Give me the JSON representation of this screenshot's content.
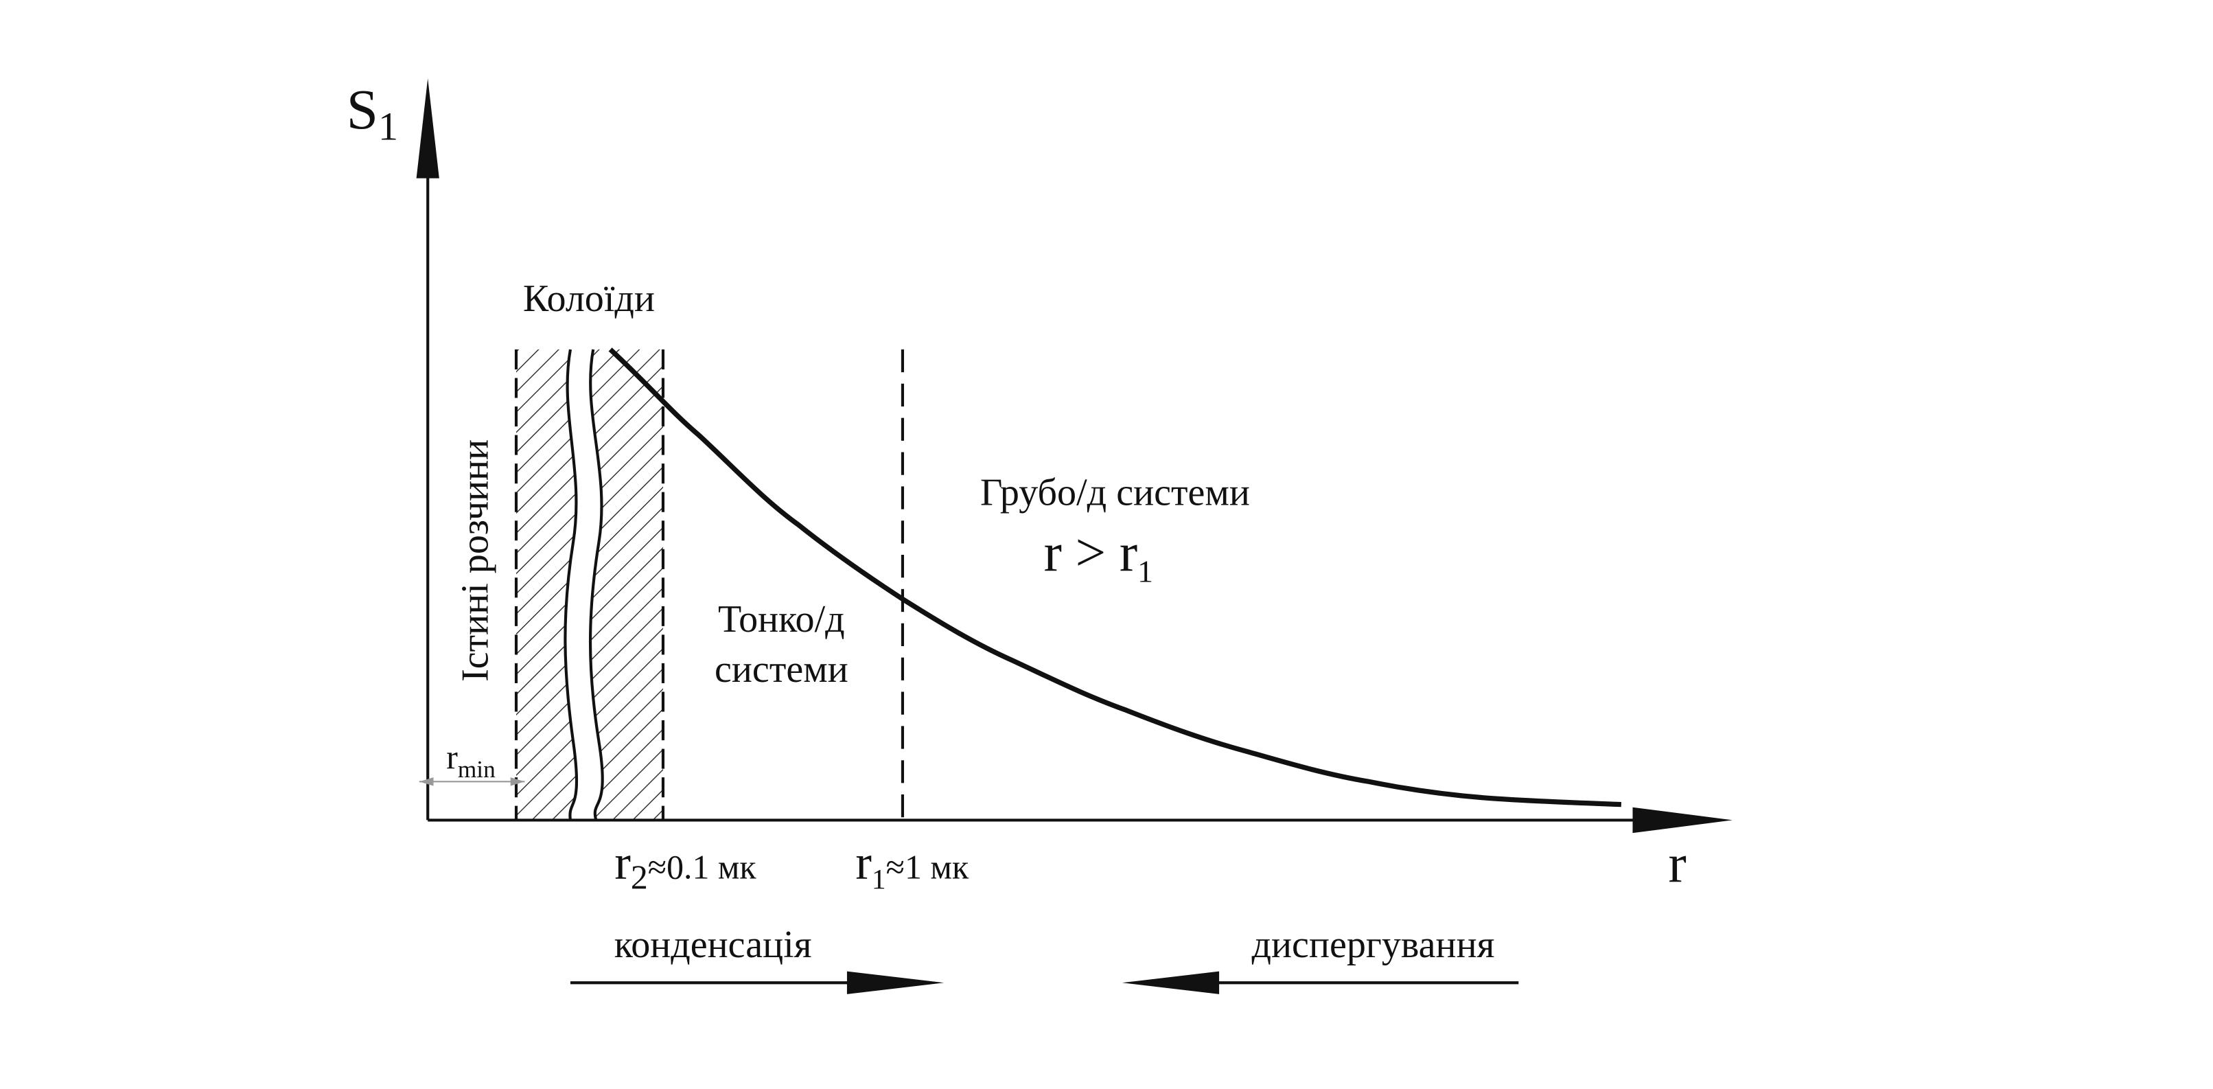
{
  "axes": {
    "y_label": {
      "base": "S",
      "sub": "1"
    },
    "x_label": "r"
  },
  "regions": {
    "colloids": "Колоїди",
    "true_solutions": "Істині розчини",
    "fine": [
      "Тонко/д",
      "системи"
    ],
    "coarse": "Грубо/д системи",
    "coarse_condition": {
      "base": "r > r",
      "sub": "1"
    }
  },
  "marks": {
    "r_min": {
      "base": "r",
      "sub": "min"
    },
    "r2": {
      "base": "r",
      "sub": "2",
      "rest": "≈0.1 мк"
    },
    "r1": {
      "base": "r",
      "sub": "1",
      "rest": "≈1 мк"
    }
  },
  "processes": {
    "condensation": "конденсація",
    "dispersion": "диспергування"
  }
}
